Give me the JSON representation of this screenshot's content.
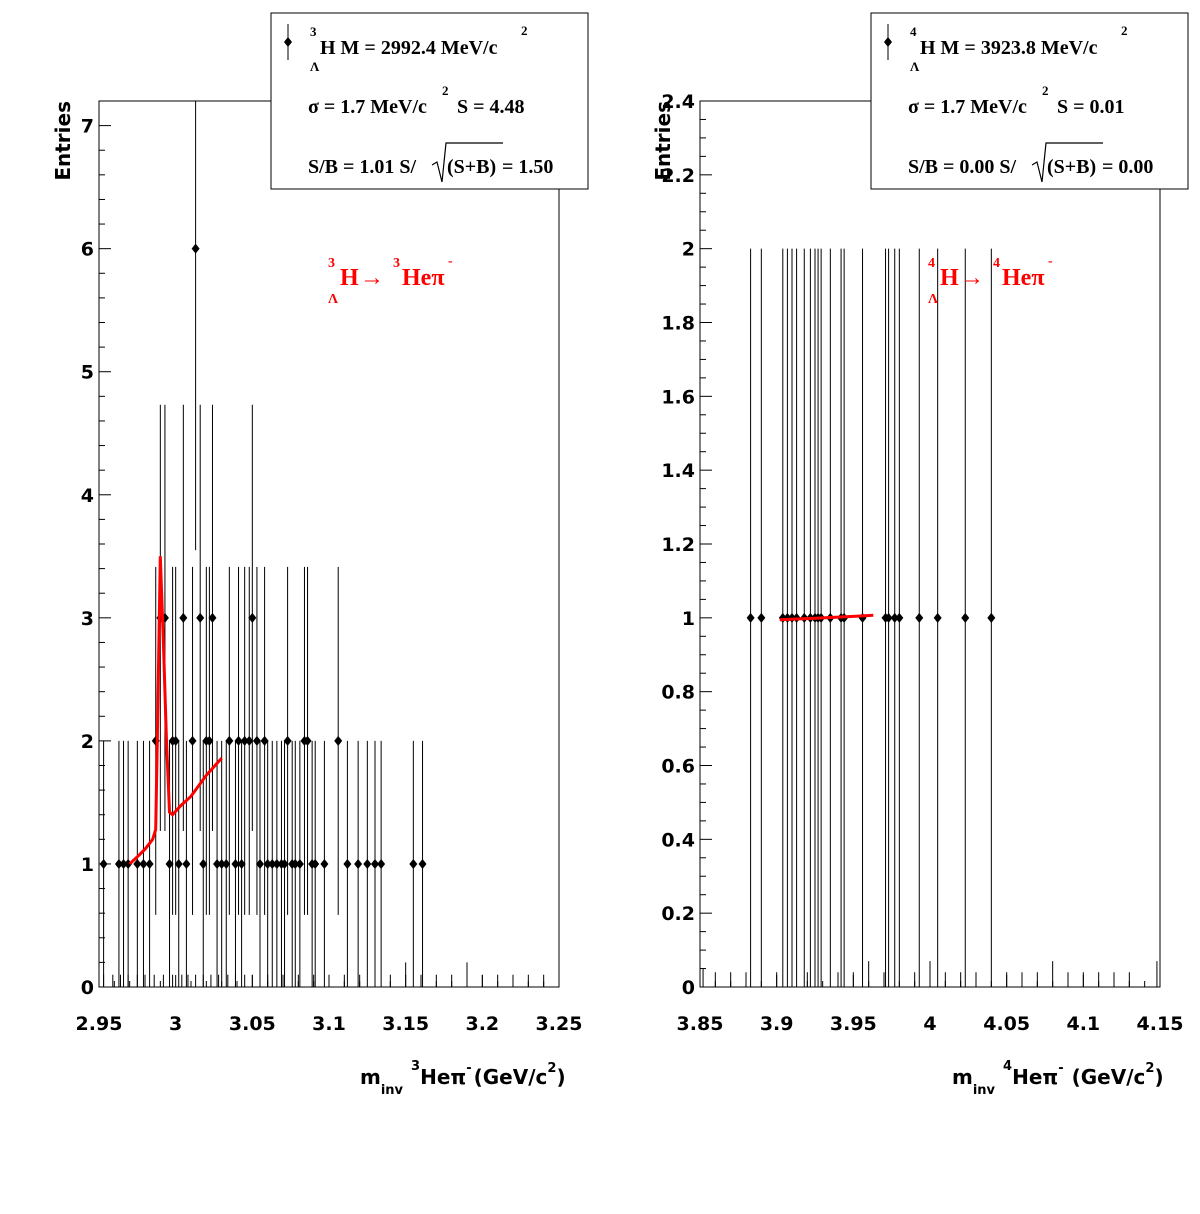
{
  "chart_data": [
    {
      "type": "scatter",
      "ylabel": "Entries",
      "xlabel": {
        "m": "m",
        "inv": "inv",
        "he_sup": "3",
        "he": "He",
        "pi": "π",
        "pi_sup": "-",
        "unit": "(GeV/c",
        "unit_sup": "2",
        "close": ")"
      },
      "xlim": [
        2.95,
        3.25
      ],
      "ylim": [
        0,
        7.2
      ],
      "xticks": [
        "2.95",
        "3",
        "3.05",
        "3.1",
        "3.15",
        "3.2",
        "3.25"
      ],
      "xtick_values": [
        2.95,
        3.0,
        3.05,
        3.1,
        3.15,
        3.2,
        3.25
      ],
      "yticks": [
        "0",
        "1",
        "2",
        "3",
        "4",
        "5",
        "6",
        "7"
      ],
      "ytick_values": [
        0,
        1,
        2,
        3,
        4,
        5,
        6,
        7
      ],
      "legend": {
        "line1": {
          "sup": "3",
          "sub": "Λ",
          "text": "H M = 2992.4 MeV/c",
          "text_sup": "2"
        },
        "line2": {
          "text": "σ = 1.7 MeV/c",
          "text_sup": "2",
          "text2": "S = 4.48"
        },
        "line3": {
          "pre": "S/B = 1.01  S/",
          "rad": "(S+B)",
          "post": " = 1.50"
        }
      },
      "process": {
        "sup1": "3",
        "sub1": "Λ",
        "part1": "H",
        "arrow": "→",
        "sup2": "3",
        "part2": "Heπ",
        "sup3": "-"
      },
      "points": [
        [
          2.953,
          1
        ],
        [
          2.963,
          1
        ],
        [
          2.966,
          1
        ],
        [
          2.969,
          1
        ],
        [
          2.975,
          1
        ],
        [
          2.979,
          1
        ],
        [
          2.983,
          1
        ],
        [
          2.987,
          2
        ],
        [
          2.99,
          3
        ],
        [
          2.993,
          3
        ],
        [
          2.996,
          1
        ],
        [
          2.998,
          2
        ],
        [
          3.0,
          2
        ],
        [
          3.002,
          1
        ],
        [
          3.005,
          3
        ],
        [
          3.007,
          1
        ],
        [
          3.011,
          2
        ],
        [
          3.013,
          6
        ],
        [
          3.016,
          3
        ],
        [
          3.018,
          1
        ],
        [
          3.02,
          2
        ],
        [
          3.022,
          2
        ],
        [
          3.024,
          3
        ],
        [
          3.027,
          1
        ],
        [
          3.03,
          1
        ],
        [
          3.033,
          1
        ],
        [
          3.035,
          2
        ],
        [
          3.039,
          1
        ],
        [
          3.041,
          2
        ],
        [
          3.043,
          1
        ],
        [
          3.045,
          2
        ],
        [
          3.048,
          2
        ],
        [
          3.05,
          3
        ],
        [
          3.053,
          2
        ],
        [
          3.055,
          1
        ],
        [
          3.058,
          2
        ],
        [
          3.06,
          1
        ],
        [
          3.063,
          1
        ],
        [
          3.066,
          1
        ],
        [
          3.069,
          1
        ],
        [
          3.071,
          1
        ],
        [
          3.073,
          2
        ],
        [
          3.076,
          1
        ],
        [
          3.078,
          1
        ],
        [
          3.081,
          1
        ],
        [
          3.084,
          2
        ],
        [
          3.086,
          2
        ],
        [
          3.089,
          1
        ],
        [
          3.091,
          1
        ],
        [
          3.097,
          1
        ],
        [
          3.106,
          2
        ],
        [
          3.112,
          1
        ],
        [
          3.119,
          1
        ],
        [
          3.125,
          1
        ],
        [
          3.13,
          1
        ],
        [
          3.134,
          1
        ],
        [
          3.155,
          1
        ],
        [
          3.161,
          1
        ]
      ],
      "fit": [
        [
          2.97,
          1.0
        ],
        [
          2.976,
          1.07
        ],
        [
          2.98,
          1.12
        ],
        [
          2.985,
          1.2
        ],
        [
          2.987,
          1.28
        ],
        [
          2.988,
          2.0
        ],
        [
          2.99,
          3.5
        ],
        [
          2.992,
          2.8
        ],
        [
          2.994,
          2.0
        ],
        [
          2.996,
          1.42
        ],
        [
          2.998,
          1.4
        ],
        [
          3.003,
          1.47
        ],
        [
          3.01,
          1.55
        ],
        [
          3.02,
          1.72
        ],
        [
          3.03,
          1.86
        ]
      ],
      "background_marks": [
        [
          2.953,
          0.1
        ],
        [
          2.959,
          0.1
        ],
        [
          2.964,
          0.1
        ],
        [
          2.969,
          0.1
        ],
        [
          2.975,
          0.1
        ],
        [
          2.98,
          0.1
        ],
        [
          2.986,
          0.1
        ],
        [
          2.992,
          0.1
        ],
        [
          2.998,
          0.1
        ],
        [
          3.004,
          0.1
        ],
        [
          3.008,
          0.1
        ],
        [
          3.013,
          0.1
        ],
        [
          3.018,
          0.1
        ],
        [
          3.023,
          0.1
        ],
        [
          3.028,
          0.1
        ],
        [
          3.034,
          0.1
        ],
        [
          3.039,
          0.1
        ],
        [
          3.045,
          0.1
        ],
        [
          3.05,
          0.1
        ],
        [
          3.06,
          0.1
        ],
        [
          3.07,
          0.1
        ],
        [
          3.08,
          0.1
        ],
        [
          3.09,
          0.1
        ],
        [
          3.1,
          0.1
        ],
        [
          3.11,
          0.1
        ],
        [
          3.12,
          0.1
        ],
        [
          3.13,
          0.1
        ],
        [
          3.14,
          0.1
        ],
        [
          3.15,
          0.2
        ],
        [
          3.16,
          0.1
        ],
        [
          3.17,
          0.1
        ],
        [
          3.18,
          0.1
        ],
        [
          3.19,
          0.2
        ],
        [
          3.2,
          0.1
        ],
        [
          3.21,
          0.1
        ],
        [
          3.22,
          0.1
        ],
        [
          3.23,
          0.1
        ],
        [
          3.24,
          0.1
        ]
      ],
      "colors": {
        "fit": "#ff0000",
        "markers": "#000000"
      }
    },
    {
      "type": "scatter",
      "ylabel": "Entries",
      "xlabel": {
        "m": "m",
        "inv": "inv",
        "he_sup": "4",
        "he": "He",
        "pi": "π",
        "pi_sup": "-",
        "unit": "(GeV/c",
        "unit_sup": "2",
        "close": ")"
      },
      "xlim": [
        3.85,
        4.15
      ],
      "ylim": [
        0,
        2.4
      ],
      "xticks": [
        "3.85",
        "3.9",
        "3.95",
        "4",
        "4.05",
        "4.1",
        "4.15"
      ],
      "xtick_values": [
        3.85,
        3.9,
        3.95,
        4.0,
        4.05,
        4.1,
        4.15
      ],
      "yticks": [
        "0",
        "0.2",
        "0.4",
        "0.6",
        "0.8",
        "1",
        "1.2",
        "1.4",
        "1.6",
        "1.8",
        "2",
        "2.2",
        "2.4"
      ],
      "ytick_values": [
        0,
        0.2,
        0.4,
        0.6,
        0.8,
        1.0,
        1.2,
        1.4,
        1.6,
        1.8,
        2.0,
        2.2,
        2.4
      ],
      "legend": {
        "line1": {
          "sup": "4",
          "sub": "Λ",
          "text": "H M = 3923.8 MeV/c",
          "text_sup": "2"
        },
        "line2": {
          "text": "σ = 1.7 MeV/c",
          "text_sup": "2",
          "text2": "S = 0.01"
        },
        "line3": {
          "pre": "S/B = 0.00  S/",
          "rad": "(S+B)",
          "post": " = 0.00"
        }
      },
      "process": {
        "sup1": "4",
        "sub1": "Λ",
        "part1": "H",
        "arrow": "→",
        "sup2": "4",
        "part2": "Heπ",
        "sup3": "-"
      },
      "points": [
        [
          3.883,
          1
        ],
        [
          3.89,
          1
        ],
        [
          3.904,
          1
        ],
        [
          3.907,
          1
        ],
        [
          3.91,
          1
        ],
        [
          3.913,
          1
        ],
        [
          3.918,
          1
        ],
        [
          3.922,
          1
        ],
        [
          3.925,
          1
        ],
        [
          3.927,
          1
        ],
        [
          3.929,
          1
        ],
        [
          3.935,
          1
        ],
        [
          3.942,
          1
        ],
        [
          3.944,
          1
        ],
        [
          3.956,
          1
        ],
        [
          3.971,
          1
        ],
        [
          3.973,
          1
        ],
        [
          3.977,
          1
        ],
        [
          3.98,
          1
        ],
        [
          3.993,
          1
        ],
        [
          4.005,
          1
        ],
        [
          4.023,
          1
        ],
        [
          4.04,
          1
        ]
      ],
      "fit": [
        [
          3.902,
          0.995
        ],
        [
          3.915,
          0.997
        ],
        [
          3.925,
          0.999
        ],
        [
          3.935,
          1.001
        ],
        [
          3.945,
          1.003
        ],
        [
          3.955,
          1.005
        ],
        [
          3.963,
          1.007
        ]
      ],
      "background_marks": [
        [
          3.852,
          0.05
        ],
        [
          3.86,
          0.04
        ],
        [
          3.87,
          0.04
        ],
        [
          3.88,
          0.04
        ],
        [
          3.9,
          0.04
        ],
        [
          3.91,
          0.04
        ],
        [
          3.92,
          0.04
        ],
        [
          3.94,
          0.04
        ],
        [
          3.95,
          0.04
        ],
        [
          3.96,
          0.07
        ],
        [
          3.97,
          0.04
        ],
        [
          3.99,
          0.04
        ],
        [
          4.0,
          0.07
        ],
        [
          4.01,
          0.04
        ],
        [
          4.02,
          0.04
        ],
        [
          4.03,
          0.04
        ],
        [
          4.05,
          0.04
        ],
        [
          4.06,
          0.04
        ],
        [
          4.07,
          0.04
        ],
        [
          4.08,
          0.07
        ],
        [
          4.09,
          0.04
        ],
        [
          4.1,
          0.04
        ],
        [
          4.11,
          0.04
        ],
        [
          4.12,
          0.04
        ],
        [
          4.13,
          0.04
        ],
        [
          4.148,
          0.07
        ]
      ],
      "colors": {
        "fit": "#ff0000",
        "markers": "#000000"
      }
    }
  ]
}
